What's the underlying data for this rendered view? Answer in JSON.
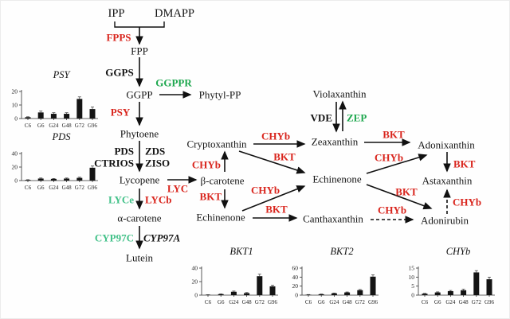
{
  "colors": {
    "enzyme_red": "#d9251d",
    "enzyme_green": "#1fa84f",
    "enzyme_green_light": "#43c189",
    "arrow": "#111111",
    "bar_fill": "#141414",
    "axis": "#333333",
    "text": "#141414"
  },
  "labels": {
    "metabolites": {
      "ipp": "IPP",
      "dmapp": "DMAPP",
      "fpp": "FPP",
      "ggpp": "GGPP",
      "phytyl_pp": "Phytyl-PP",
      "phytoene": "Phytoene",
      "lycopene": "Lycopene",
      "beta_carotene": "β-carotene",
      "alpha_carotene": "α-carotene",
      "lutein": "Lutein",
      "cryptoxanthin": "Cryptoxanthin",
      "echinenone": "Echinenone",
      "zeaxanthin": "Zeaxanthin",
      "violaxanthin": "Violaxanthin",
      "canthaxanthin": "Canthaxanthin",
      "adonixanthin": "Adonixanthin",
      "astaxanthin": "Astaxanthin",
      "adonirubin": "Adonirubin"
    },
    "enzymes": {
      "fpps": "FPPS",
      "ggps": "GGPS",
      "ggppr": "GGPPR",
      "psy": "PSY",
      "pds": "PDS",
      "zds": "ZDS",
      "ctrios": "CTRIOS",
      "ziso": "ZISO",
      "lyc": "LYC",
      "lyce": "LYCe",
      "lycb": "LYCb",
      "cyp97c": "CYP97C",
      "cyp97a": "CYP97A",
      "vde": "VDE",
      "zep": "ZEP",
      "chyb": "CHYb",
      "bkt": "BKT"
    }
  },
  "chart_data": [
    {
      "id": "psy",
      "type": "bar",
      "title": "PSY",
      "categories": [
        "C6",
        "G6",
        "G24",
        "G48",
        "G72",
        "G96"
      ],
      "values": [
        1,
        4.5,
        3.5,
        3.5,
        14.5,
        7
      ],
      "errors": [
        0.3,
        1,
        0.8,
        0.8,
        1.5,
        1.5
      ],
      "yticks": [
        0,
        10,
        20
      ],
      "ylim": [
        0,
        20
      ],
      "xlabel": "",
      "ylabel": "",
      "grid": false,
      "legend": "none"
    },
    {
      "id": "pds",
      "type": "bar",
      "title": "PDS",
      "categories": [
        "C6",
        "G6",
        "G24",
        "G48",
        "G72",
        "G96"
      ],
      "values": [
        1,
        3,
        2.5,
        3,
        4,
        19
      ],
      "errors": [
        0.3,
        0.8,
        0.6,
        0.8,
        1,
        2.5
      ],
      "yticks": [
        0,
        20,
        40
      ],
      "ylim": [
        0,
        40
      ],
      "xlabel": "",
      "ylabel": "",
      "grid": false,
      "legend": "none"
    },
    {
      "id": "bkt1",
      "type": "bar",
      "title": "BKT1",
      "categories": [
        "C6",
        "G6",
        "G24",
        "G48",
        "G72",
        "G96"
      ],
      "values": [
        0.5,
        1.5,
        5,
        3,
        28,
        13
      ],
      "errors": [
        0.2,
        0.4,
        1,
        0.8,
        3,
        1.5
      ],
      "yticks": [
        0,
        20,
        40
      ],
      "ylim": [
        0,
        40
      ],
      "xlabel": "",
      "ylabel": "",
      "grid": false,
      "legend": "none"
    },
    {
      "id": "bkt2",
      "type": "bar",
      "title": "BKT2",
      "categories": [
        "C6",
        "G6",
        "G24",
        "G48",
        "G72",
        "G96"
      ],
      "values": [
        1,
        2,
        4,
        6,
        11,
        41
      ],
      "errors": [
        0.3,
        0.5,
        0.8,
        1,
        1.5,
        4
      ],
      "yticks": [
        0,
        20,
        40,
        60
      ],
      "ylim": [
        0,
        60
      ],
      "xlabel": "",
      "ylabel": "",
      "grid": false,
      "legend": "none"
    },
    {
      "id": "chyb",
      "type": "bar",
      "title": "CHYb",
      "categories": [
        "C6",
        "G6",
        "G24",
        "G48",
        "G72",
        "G96"
      ],
      "values": [
        0.8,
        1.5,
        2.2,
        2.7,
        12.6,
        8.8
      ],
      "errors": [
        0.2,
        0.3,
        0.4,
        0.6,
        1,
        1.2
      ],
      "yticks": [
        0,
        5,
        10,
        15
      ],
      "ylim": [
        0,
        15
      ],
      "xlabel": "",
      "ylabel": "",
      "grid": false,
      "legend": "none"
    }
  ]
}
